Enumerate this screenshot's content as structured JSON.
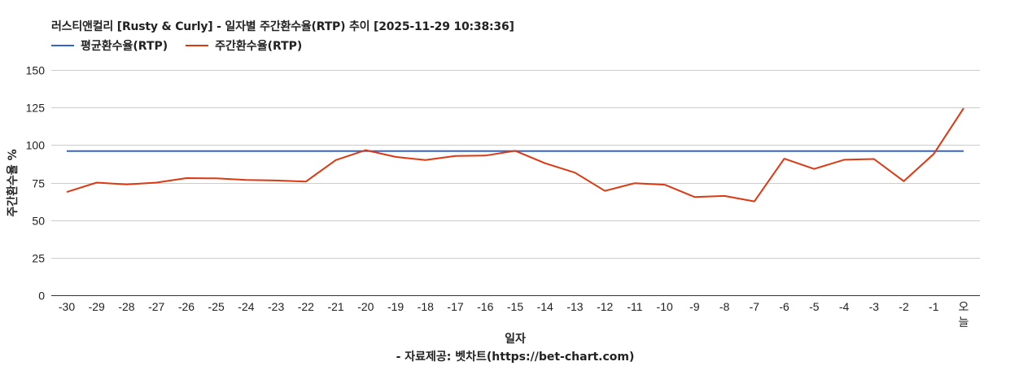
{
  "title": "러스티앤컬리 [Rusty & Curly] - 일자별 주간환수율(RTP) 추이 [2025-11-29 10:38:36]",
  "legend": [
    {
      "label": "평균환수율(RTP)",
      "color": "#3366cc"
    },
    {
      "label": "주간환수율(RTP)",
      "color": "#dc3912"
    }
  ],
  "axes": {
    "ylabel": "주간환수율 %",
    "xlabel": "일자",
    "source": "- 자료제공: 벳차트(https://bet-chart.com)"
  },
  "chart_data": {
    "type": "line",
    "title": "러스티앤컬리 [Rusty & Curly] - 일자별 주간환수율(RTP) 추이 [2025-11-29 10:38:36]",
    "xlabel": "일자",
    "ylabel": "주간환수율 %",
    "ylim": [
      0,
      150
    ],
    "yticks": [
      0,
      25,
      50,
      75,
      100,
      125,
      150
    ],
    "grid": true,
    "legend_position": "top",
    "categories": [
      "-30",
      "-29",
      "-28",
      "-27",
      "-26",
      "-25",
      "-24",
      "-23",
      "-22",
      "-21",
      "-20",
      "-19",
      "-18",
      "-17",
      "-16",
      "-15",
      "-14",
      "-13",
      "-12",
      "-11",
      "-10",
      "-9",
      "-8",
      "-7",
      "-6",
      "-5",
      "-4",
      "-3",
      "-2",
      "-1",
      "오늘"
    ],
    "series": [
      {
        "name": "평균환수율(RTP)",
        "color": "#3366cc",
        "values": [
          96,
          96,
          96,
          96,
          96,
          96,
          96,
          96,
          96,
          96,
          96,
          96,
          96,
          96,
          96,
          96,
          96,
          96,
          96,
          96,
          96,
          96,
          96,
          96,
          96,
          96,
          96,
          96,
          96,
          96,
          96
        ]
      },
      {
        "name": "주간환수율(RTP)",
        "color": "#dc3912",
        "values": [
          68.7,
          75,
          73.8,
          75,
          78,
          77.8,
          76.8,
          76.4,
          75.7,
          90,
          96.6,
          92.1,
          90,
          92.7,
          93,
          96.2,
          87.9,
          81.6,
          69.5,
          74.6,
          73.6,
          65.4,
          66.1,
          62.5,
          90.9,
          84.1,
          90.2,
          90.7,
          75.9,
          94.1,
          124.5
        ]
      }
    ],
    "source": "- 자료제공: 벳차트(https://bet-chart.com)"
  }
}
